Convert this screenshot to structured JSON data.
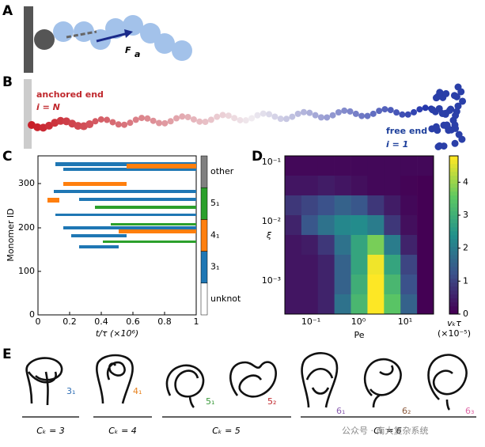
{
  "panel_a": {
    "label": "A",
    "force_label": "F",
    "force_sub": "a"
  },
  "panel_b": {
    "label": "B",
    "anchored_end": "anchored end",
    "anchored_index": "i = N",
    "free_end": "free end",
    "free_index": "i = 1"
  },
  "panel_c": {
    "label": "C",
    "ylabel": "Monomer ID",
    "xlabel": "t/τ  (×10⁶)",
    "yticks": [
      "0",
      "100",
      "200",
      "300"
    ],
    "xticks": [
      "0",
      "0.2",
      "0.4",
      "0.6",
      "0.8",
      "1"
    ],
    "colorbar_labels": [
      "unknot",
      "3₁",
      "4₁",
      "5₁",
      "other"
    ]
  },
  "panel_d": {
    "label": "D",
    "xlabel": "Pe",
    "ylabel": "ξ",
    "yticks": [
      "10⁻¹",
      "10⁻²",
      "10⁻³"
    ],
    "xticks": [
      "10⁻¹",
      "10⁰",
      "10¹"
    ],
    "colorbar_label": "vₖτ",
    "colorbar_unit": "(×10⁻⁵)",
    "clim": [
      0,
      4.8
    ],
    "colorbar_ticks": [
      0,
      1,
      2,
      3,
      4
    ],
    "heatmap": [
      [
        0.1,
        0.1,
        0.1,
        0.1,
        0.1,
        0.1,
        0.1,
        0.1,
        0.1
      ],
      [
        0.3,
        0.3,
        0.4,
        0.3,
        0.2,
        0.1,
        0.1,
        0.05,
        0
      ],
      [
        0.8,
        1.0,
        1.2,
        1.5,
        1.3,
        0.8,
        0.4,
        0.1,
        0
      ],
      [
        0.5,
        1.3,
        1.8,
        2.2,
        2.3,
        2.0,
        0.8,
        0.2,
        0
      ],
      [
        0.3,
        0.4,
        0.8,
        1.8,
        2.8,
        3.8,
        2.0,
        0.5,
        0
      ],
      [
        0.3,
        0.3,
        0.5,
        1.5,
        2.8,
        4.7,
        2.8,
        1.0,
        0
      ],
      [
        0.3,
        0.3,
        0.5,
        1.5,
        3.0,
        4.8,
        3.2,
        1.2,
        0
      ],
      [
        0.3,
        0.3,
        0.5,
        1.8,
        3.2,
        4.8,
        3.5,
        1.5,
        0
      ]
    ]
  },
  "panel_e": {
    "label": "E",
    "knots": [
      "3₁",
      "4₁",
      "5₁",
      "5₂",
      "6₁",
      "6₂",
      "6₃"
    ],
    "groups": [
      "Cₖ = 3",
      "Cₖ = 4",
      "Cₖ = 5",
      "Cₖ = 6"
    ],
    "watermark": "公众号 · 南大复杂系统"
  }
}
